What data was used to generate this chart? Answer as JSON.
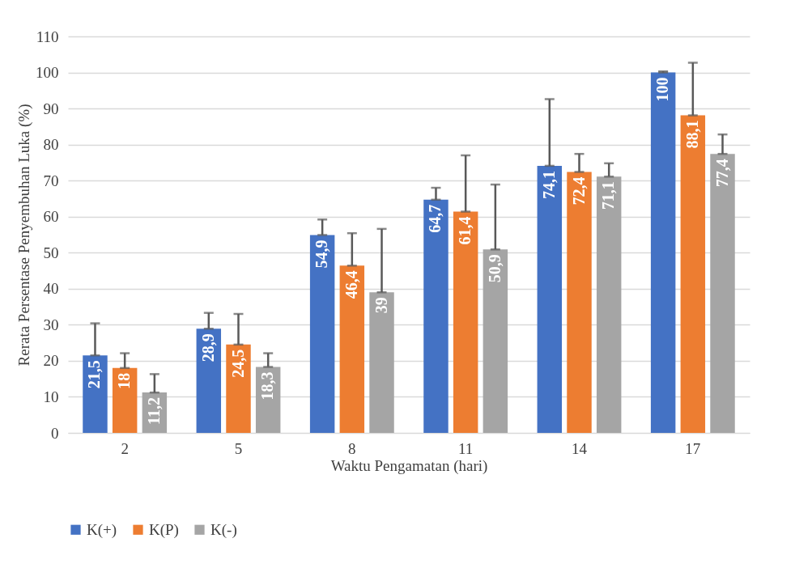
{
  "chart_data": {
    "type": "bar",
    "xlabel": "Waktu Pengamatan (hari)",
    "ylabel": "Rerata Persentase Penyembuhan Luka (%)",
    "categories": [
      "2",
      "5",
      "8",
      "11",
      "14",
      "17"
    ],
    "series": [
      {
        "name": "K(+)",
        "color": "#4472c4",
        "values": [
          21.5,
          28.9,
          54.9,
          64.7,
          74.1,
          100
        ],
        "value_labels": [
          "21,5",
          "28,9",
          "54,9",
          "64,7",
          "74,1",
          "100"
        ],
        "errors": [
          [
            21.5,
            30.4
          ],
          [
            28.9,
            33.3
          ],
          [
            54.9,
            59.2
          ],
          [
            64.7,
            68.0
          ],
          [
            74.1,
            92.6
          ],
          [
            100,
            100.3
          ]
        ]
      },
      {
        "name": "K(P)",
        "color": "#ed7d31",
        "values": [
          18,
          24.5,
          46.4,
          61.4,
          72.4,
          88.1
        ],
        "value_labels": [
          "18",
          "24,5",
          "46,4",
          "61,4",
          "72,4",
          "88,1"
        ],
        "errors": [
          [
            18,
            22.1
          ],
          [
            24.5,
            33.0
          ],
          [
            46.4,
            55.4
          ],
          [
            61.4,
            77.0
          ],
          [
            72.4,
            77.4
          ],
          [
            88.1,
            102.7
          ]
        ]
      },
      {
        "name": "K(-)",
        "color": "#a5a5a5",
        "values": [
          11.2,
          18.3,
          39,
          50.9,
          71.1,
          77.4
        ],
        "value_labels": [
          "11,2",
          "18,3",
          "39",
          "50,9",
          "71,1",
          "77,4"
        ],
        "errors": [
          [
            11.2,
            16.3
          ],
          [
            18.3,
            22.1
          ],
          [
            39,
            56.6
          ],
          [
            50.9,
            68.9
          ],
          [
            71.1,
            74.8
          ],
          [
            77.4,
            82.8
          ]
        ]
      }
    ],
    "ylim": [
      0,
      110
    ],
    "yticks": [
      0,
      10,
      20,
      30,
      40,
      50,
      60,
      70,
      80,
      90,
      100,
      110
    ],
    "grid": "y",
    "legend": "bottom"
  }
}
